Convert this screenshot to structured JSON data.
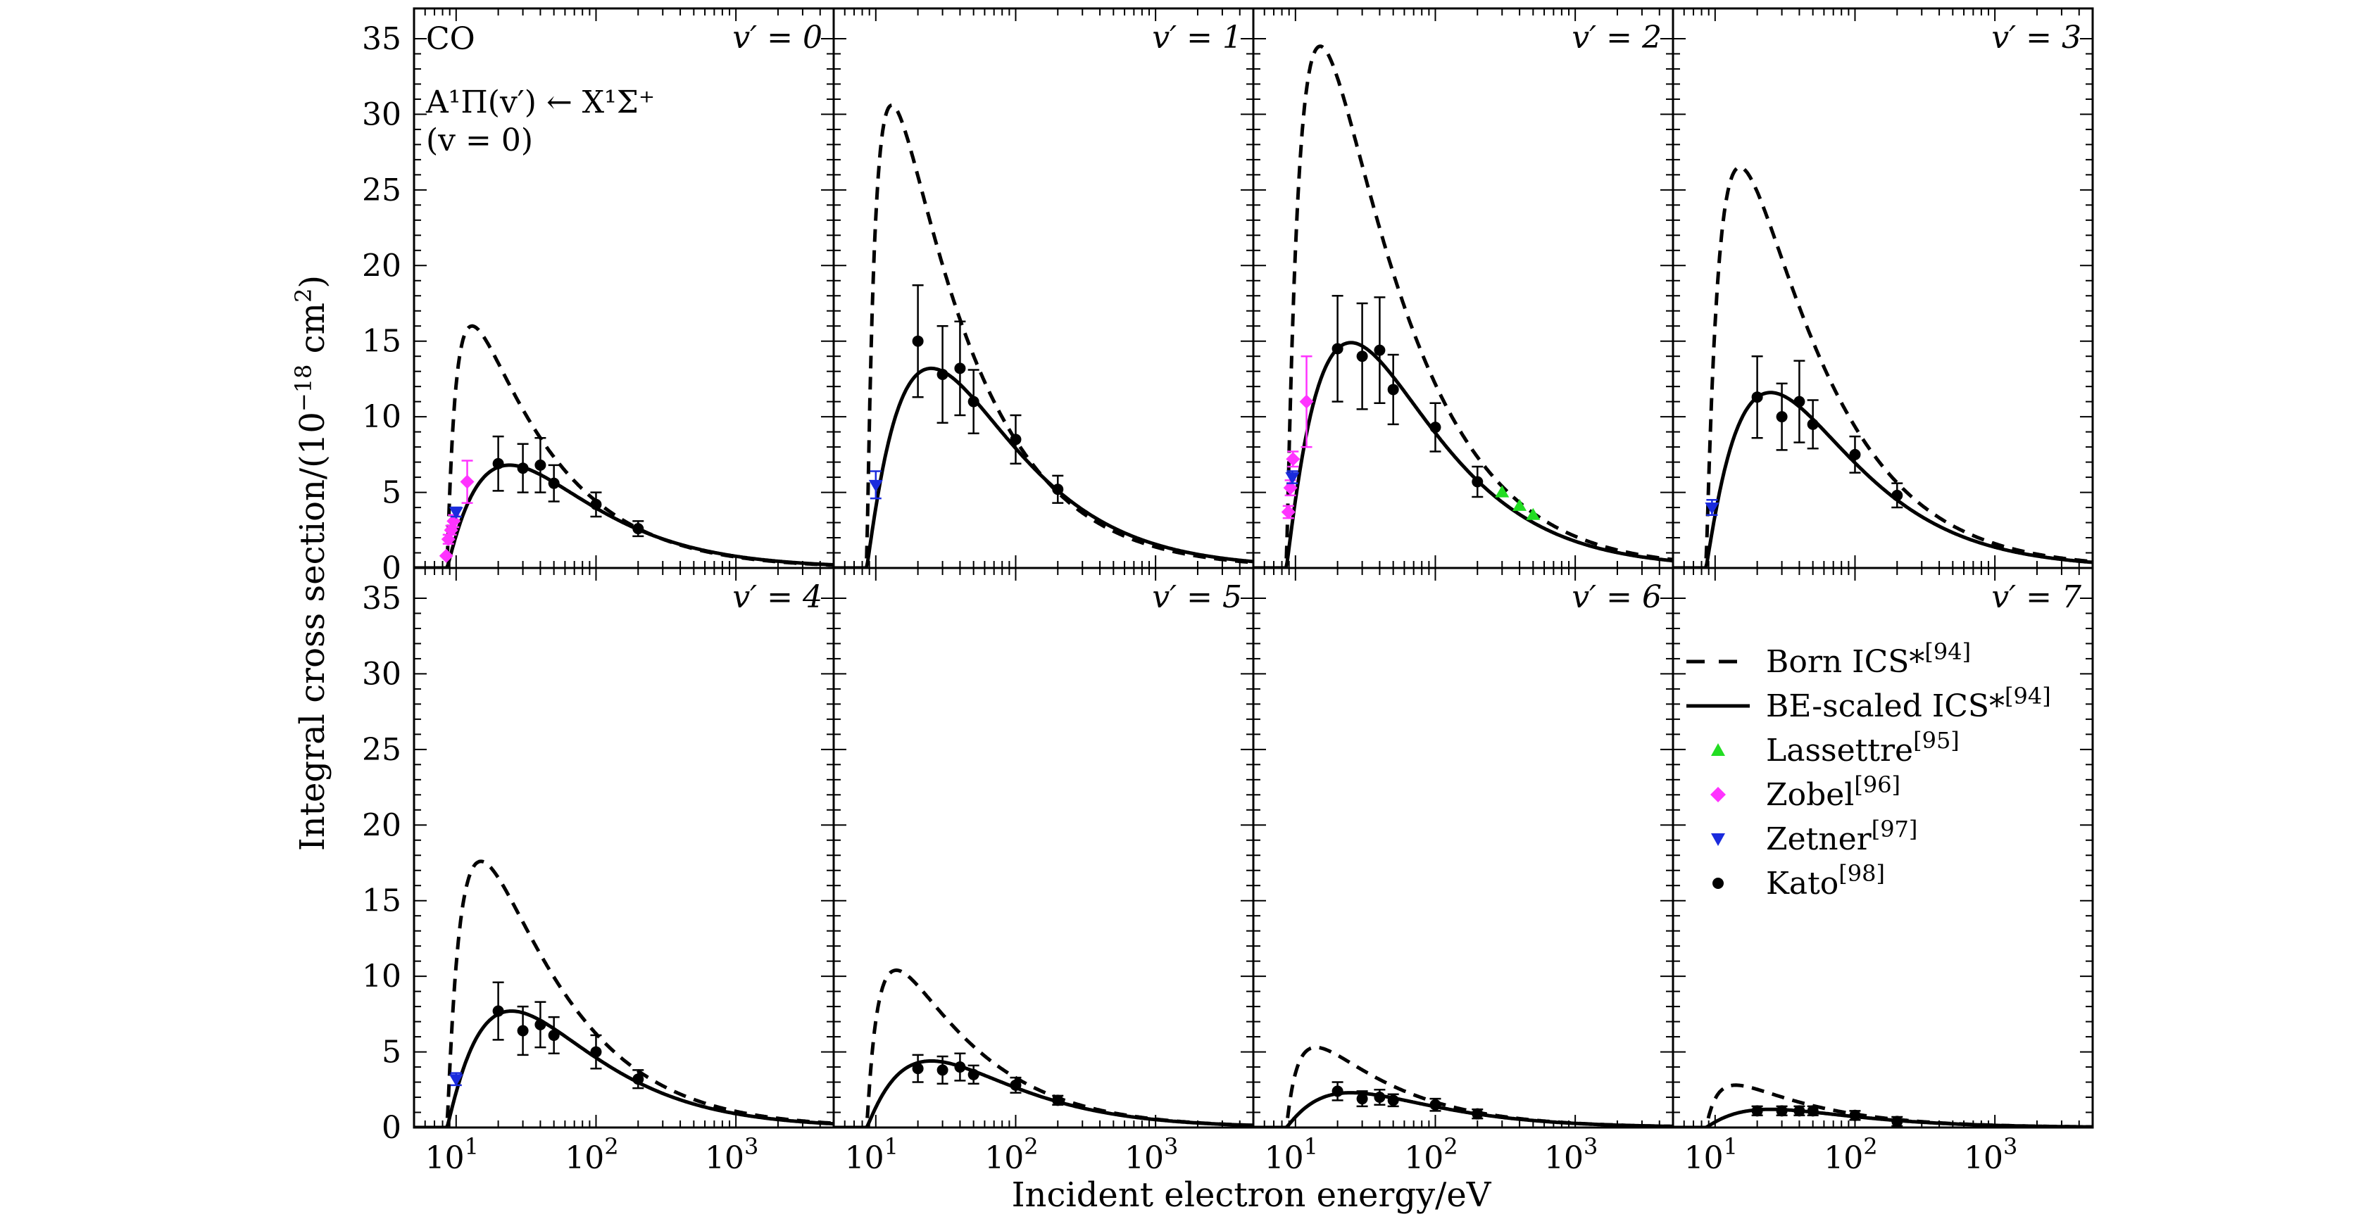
{
  "chart_data": {
    "type": "line",
    "figure_xlabel": "Incident electron energy/eV",
    "figure_ylabel": "Integral cross section/(10",
    "ylabel_exp": "−18",
    "ylabel_tail": " cm",
    "ylabel_sq": "2",
    "ylabel_close": ")",
    "xscale": "log",
    "xlim": [
      5,
      5000
    ],
    "ylim": [
      0,
      37
    ],
    "x_ticks": [
      {
        "mantissa": "10",
        "exponent": "1"
      },
      {
        "mantissa": "10",
        "exponent": "2"
      },
      {
        "mantissa": "10",
        "exponent": "3"
      }
    ],
    "y_ticks": [
      "0",
      "5",
      "10",
      "15",
      "20",
      "25",
      "30",
      "35"
    ],
    "annotation": {
      "molecule": "CO",
      "transition": "A¹Π(v′) ← X¹Σ⁺",
      "initial_state": "(v = 0)"
    },
    "colors": {
      "lassettre": "#22dd22",
      "zobel": "#ff33ff",
      "zetner": "#1a2bdd",
      "kato": "#000000"
    },
    "legend": [
      {
        "label": "Born ICS*",
        "ref": "[94]",
        "marker": "dashed-line"
      },
      {
        "label": "BE-scaled ICS*",
        "ref": "[94]",
        "marker": "solid-line"
      },
      {
        "label": "Lassettre",
        "ref": "[95]",
        "marker": "triangle-up"
      },
      {
        "label": "Zobel",
        "ref": "[96]",
        "marker": "diamond"
      },
      {
        "label": "Zetner",
        "ref": "[97]",
        "marker": "triangle-down"
      },
      {
        "label": "Kato",
        "ref": "[98]",
        "marker": "circle"
      }
    ],
    "panels": [
      {
        "label": "v′ = 0",
        "born": {
          "peak_x": 13,
          "peak_y": 16.0
        },
        "be": {
          "peak_x": 24,
          "peak_y": 6.8
        },
        "kato": [
          {
            "x": 20,
            "y": 6.9,
            "err": 1.8
          },
          {
            "x": 30,
            "y": 6.6,
            "err": 1.6
          },
          {
            "x": 40,
            "y": 6.8,
            "err": 1.8
          },
          {
            "x": 50,
            "y": 5.6,
            "err": 1.2
          },
          {
            "x": 100,
            "y": 4.2,
            "err": 0.8
          },
          {
            "x": 200,
            "y": 2.6,
            "err": 0.5
          }
        ],
        "zobel": [
          {
            "x": 8.5,
            "y": 0.8,
            "err": 0.0
          },
          {
            "x": 8.8,
            "y": 1.9,
            "err": 0.3
          },
          {
            "x": 9.2,
            "y": 2.5,
            "err": 0.3
          },
          {
            "x": 9.6,
            "y": 3.1,
            "err": 0.4
          },
          {
            "x": 12,
            "y": 5.7,
            "err": 1.4
          }
        ],
        "zetner": [
          {
            "x": 10,
            "y": 3.7,
            "err": 0.3
          }
        ],
        "lassettre": []
      },
      {
        "label": "v′ = 1",
        "born": {
          "peak_x": 13,
          "peak_y": 30.6
        },
        "be": {
          "peak_x": 25,
          "peak_y": 13.2
        },
        "kato": [
          {
            "x": 20,
            "y": 15.0,
            "err": 3.7
          },
          {
            "x": 30,
            "y": 12.8,
            "err": 3.2
          },
          {
            "x": 40,
            "y": 13.2,
            "err": 3.1
          },
          {
            "x": 50,
            "y": 11.0,
            "err": 2.1
          },
          {
            "x": 100,
            "y": 8.5,
            "err": 1.6
          },
          {
            "x": 200,
            "y": 5.2,
            "err": 0.9
          }
        ],
        "zobel": [],
        "zetner": [
          {
            "x": 10,
            "y": 5.5,
            "err": 0.9
          }
        ],
        "lassettre": []
      },
      {
        "label": "v′ = 2",
        "born": {
          "peak_x": 15,
          "peak_y": 34.5
        },
        "be": {
          "peak_x": 25,
          "peak_y": 14.9
        },
        "kato": [
          {
            "x": 20,
            "y": 14.5,
            "err": 3.5
          },
          {
            "x": 30,
            "y": 14.0,
            "err": 3.5
          },
          {
            "x": 40,
            "y": 14.4,
            "err": 3.5
          },
          {
            "x": 50,
            "y": 11.8,
            "err": 2.3
          },
          {
            "x": 100,
            "y": 9.3,
            "err": 1.6
          },
          {
            "x": 200,
            "y": 5.7,
            "err": 1.0
          }
        ],
        "zobel": [
          {
            "x": 8.9,
            "y": 3.7,
            "err": 0.4
          },
          {
            "x": 9.2,
            "y": 5.3,
            "err": 0.5
          },
          {
            "x": 9.6,
            "y": 7.2,
            "err": 0.5
          },
          {
            "x": 12,
            "y": 11.0,
            "err": 3.0
          }
        ],
        "zetner": [
          {
            "x": 9.5,
            "y": 6.0,
            "err": 0.4
          }
        ],
        "lassettre": [
          {
            "x": 300,
            "y": 5.0
          },
          {
            "x": 400,
            "y": 4.1
          },
          {
            "x": 500,
            "y": 3.5
          }
        ]
      },
      {
        "label": "v′ = 3",
        "born": {
          "peak_x": 15,
          "peak_y": 26.5
        },
        "be": {
          "peak_x": 25,
          "peak_y": 11.6
        },
        "kato": [
          {
            "x": 20,
            "y": 11.3,
            "err": 2.7
          },
          {
            "x": 30,
            "y": 10.0,
            "err": 2.2
          },
          {
            "x": 40,
            "y": 11.0,
            "err": 2.7
          },
          {
            "x": 50,
            "y": 9.5,
            "err": 1.6
          },
          {
            "x": 100,
            "y": 7.5,
            "err": 1.2
          },
          {
            "x": 200,
            "y": 4.8,
            "err": 0.8
          }
        ],
        "zobel": [],
        "zetner": [
          {
            "x": 9.5,
            "y": 4.0,
            "err": 0.5
          }
        ],
        "lassettre": []
      },
      {
        "label": "v′ = 4",
        "born": {
          "peak_x": 15,
          "peak_y": 17.6
        },
        "be": {
          "peak_x": 25,
          "peak_y": 7.7
        },
        "kato": [
          {
            "x": 20,
            "y": 7.7,
            "err": 1.9
          },
          {
            "x": 30,
            "y": 6.4,
            "err": 1.6
          },
          {
            "x": 40,
            "y": 6.8,
            "err": 1.5
          },
          {
            "x": 50,
            "y": 6.1,
            "err": 1.2
          },
          {
            "x": 100,
            "y": 5.0,
            "err": 1.1
          },
          {
            "x": 200,
            "y": 3.2,
            "err": 0.6
          }
        ],
        "zobel": [],
        "zetner": [
          {
            "x": 10,
            "y": 3.2,
            "err": 0.4
          }
        ],
        "lassettre": []
      },
      {
        "label": "v′ = 5",
        "born": {
          "peak_x": 14,
          "peak_y": 10.4
        },
        "be": {
          "peak_x": 25,
          "peak_y": 4.4
        },
        "kato": [
          {
            "x": 20,
            "y": 3.9,
            "err": 0.9
          },
          {
            "x": 30,
            "y": 3.8,
            "err": 0.9
          },
          {
            "x": 40,
            "y": 4.0,
            "err": 0.9
          },
          {
            "x": 50,
            "y": 3.5,
            "err": 0.6
          },
          {
            "x": 100,
            "y": 2.8,
            "err": 0.5
          },
          {
            "x": 200,
            "y": 1.8,
            "err": 0.3
          }
        ],
        "zobel": [],
        "zetner": [],
        "lassettre": []
      },
      {
        "label": "v′ = 6",
        "born": {
          "peak_x": 14,
          "peak_y": 5.3
        },
        "be": {
          "peak_x": 25,
          "peak_y": 2.3
        },
        "kato": [
          {
            "x": 20,
            "y": 2.4,
            "err": 0.6
          },
          {
            "x": 30,
            "y": 1.9,
            "err": 0.5
          },
          {
            "x": 40,
            "y": 2.0,
            "err": 0.5
          },
          {
            "x": 50,
            "y": 1.8,
            "err": 0.4
          },
          {
            "x": 100,
            "y": 1.5,
            "err": 0.4
          },
          {
            "x": 200,
            "y": 0.9,
            "err": 0.3
          }
        ],
        "zobel": [],
        "zetner": [],
        "lassettre": []
      },
      {
        "label": "v′ = 7",
        "born": {
          "peak_x": 14,
          "peak_y": 2.8
        },
        "be": {
          "peak_x": 25,
          "peak_y": 1.2
        },
        "kato": [
          {
            "x": 20,
            "y": 1.1,
            "err": 0.3
          },
          {
            "x": 30,
            "y": 1.1,
            "err": 0.3
          },
          {
            "x": 40,
            "y": 1.1,
            "err": 0.3
          },
          {
            "x": 50,
            "y": 1.1,
            "err": 0.3
          },
          {
            "x": 100,
            "y": 0.8,
            "err": 0.3
          },
          {
            "x": 200,
            "y": 0.4,
            "err": 0.3
          }
        ],
        "zobel": [],
        "zetner": [],
        "lassettre": []
      }
    ]
  }
}
